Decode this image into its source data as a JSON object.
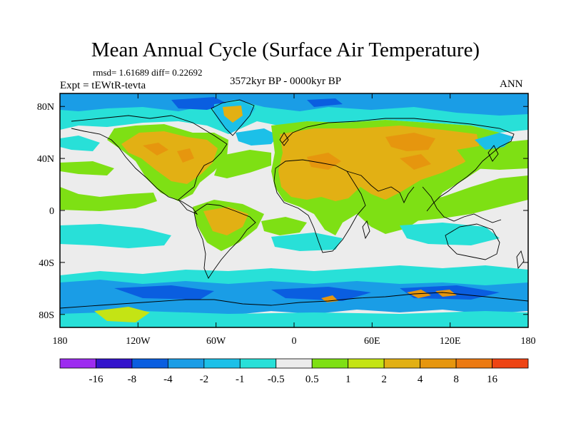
{
  "title": "Mean Annual Cycle (Surface Air Temperature)",
  "stats": "rmsd= 1.61689  diff= 0.22692",
  "experiment": "Expt = tEWtR-tevta",
  "period": "3572kyr BP - 0000kyr BP",
  "season": "ANN",
  "map": {
    "projection": "cylindrical equidistant",
    "lon_range": [
      -180,
      180
    ],
    "lat_range": [
      -90,
      90
    ],
    "lon_ticks": [
      "180",
      "120W",
      "60W",
      "0",
      "60E",
      "120E",
      "180"
    ],
    "lat_ticks": [
      "80N",
      "40N",
      "0",
      "40S",
      "80S"
    ]
  },
  "colorbar": {
    "colors": [
      "#9d2cf0",
      "#3414cc",
      "#0a5ee0",
      "#1a9de6",
      "#1cc0e8",
      "#28e0d8",
      "#ececec",
      "#7ee014",
      "#c4e414",
      "#e2b014",
      "#e6960e",
      "#ec7a12",
      "#ee4414"
    ],
    "labels": [
      "-16",
      "-8",
      "-4",
      "-2",
      "-1",
      "-0.5",
      "0.5",
      "1",
      "2",
      "4",
      "8",
      "16"
    ]
  }
}
